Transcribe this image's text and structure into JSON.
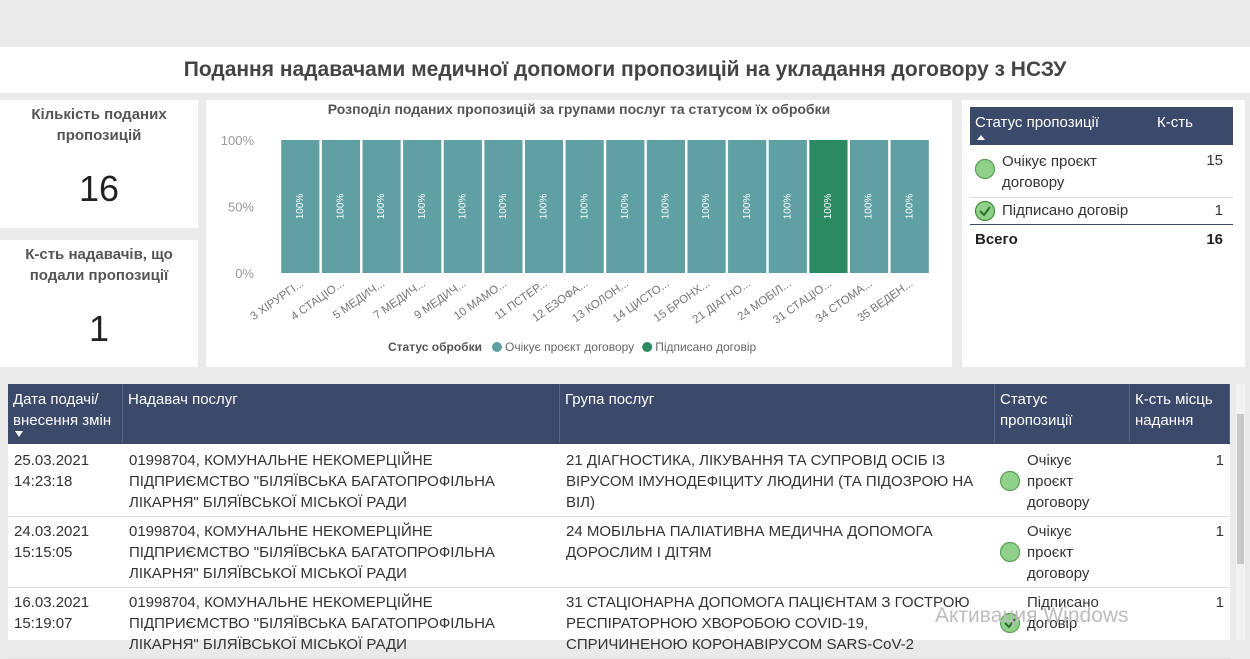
{
  "header": {
    "title": "Подання надавачами медичної допомоги пропозицій на укладання договору з НСЗУ"
  },
  "cards": [
    {
      "label": "Кількість поданих пропозицій",
      "value": 16
    },
    {
      "label": "К-сть надавачів, що подали пропозиції",
      "value": 1
    }
  ],
  "chart_data": {
    "type": "bar",
    "stacked": true,
    "title": "Розподіл поданих пропозицій за групами послуг та статусом їх обробки",
    "categories": [
      "3 ХІРУРГІ...",
      "4 СТАЦІО...",
      "5 МЕДИЧ...",
      "7 МЕДИЧ...",
      "9 МЕДИЧ...",
      "10 МАМО...",
      "11 ПСТЕР...",
      "12 ЕЗОФА...",
      "13 КОЛОН...",
      "14 ЦИСТО...",
      "15 БРОНХ...",
      "21 ДІАГНО...",
      "24 МОБІЛ...",
      "31 СТАЦІО...",
      "34 СТОМА...",
      "35 ВЕДЕН..."
    ],
    "series": [
      {
        "name": "Очікує проєкт договору",
        "color": "#5fa0a3",
        "values": [
          100,
          100,
          100,
          100,
          100,
          100,
          100,
          100,
          100,
          100,
          100,
          100,
          100,
          0,
          100,
          100
        ],
        "value_labels": [
          "100%",
          "100%",
          "100%",
          "100%",
          "100%",
          "100%",
          "100%",
          "100%",
          "100%",
          "100%",
          "100%",
          "100%",
          "100%",
          null,
          "100%",
          "100%"
        ]
      },
      {
        "name": "Підписано договір",
        "color": "#2b8a62",
        "values": [
          0,
          0,
          0,
          0,
          0,
          0,
          0,
          0,
          0,
          0,
          0,
          0,
          0,
          100,
          0,
          0
        ],
        "value_labels": [
          null,
          null,
          null,
          null,
          null,
          null,
          null,
          null,
          null,
          null,
          null,
          null,
          null,
          "100%",
          null,
          null
        ]
      }
    ],
    "ylim": [
      0,
      100
    ],
    "yticks": [
      {
        "value": 0,
        "label": "0%"
      },
      {
        "value": 50,
        "label": "50%"
      },
      {
        "value": 100,
        "label": "100%"
      }
    ],
    "grid": false,
    "legend_title": "Статус обробки",
    "legend": "bottom"
  },
  "status_table": {
    "columns": [
      "Статус пропозиції",
      "К-сть"
    ],
    "rows": [
      [
        "Очікує проєкт договору",
        15
      ],
      [
        "Підписано договір",
        1
      ]
    ],
    "total": [
      "Всего",
      16
    ]
  },
  "table": {
    "columns": [
      "Дата подачі/ внесення змін",
      "Надавач послуг",
      "Група послуг",
      "Статус пропозиції",
      "К-сть місць надання"
    ],
    "rows": [
      [
        "25.03.2021 14:23:18",
        "01998704, КОМУНАЛЬНЕ НЕКОМЕРЦІЙНЕ ПІДПРИЄМСТВО \"БІЛЯЇВСЬКА БАГАТОПРОФІЛЬНА ЛІКАРНЯ\" БІЛЯЇВСЬКОЇ МІСЬКОЇ РАДИ",
        "21 ДІАГНОСТИКА, ЛІКУВАННЯ ТА СУПРОВІД ОСІБ ІЗ ВІРУСОМ ІМУНОДЕФІЦИТУ ЛЮДИНИ (ТА ПІДОЗРОЮ НА ВІЛ)",
        "Очікує проєкт договору",
        1
      ],
      [
        "24.03.2021 15:15:05",
        "01998704, КОМУНАЛЬНЕ НЕКОМЕРЦІЙНЕ ПІДПРИЄМСТВО \"БІЛЯЇВСЬКА БАГАТОПРОФІЛЬНА ЛІКАРНЯ\" БІЛЯЇВСЬКОЇ МІСЬКОЇ РАДИ",
        "24 МОБІЛЬНА ПАЛІАТИВНА МЕДИЧНА ДОПОМОГА ДОРОСЛИМ І ДІТЯМ",
        "Очікує проєкт договору",
        1
      ],
      [
        "16.03.2021 15:19:07",
        "01998704, КОМУНАЛЬНЕ НЕКОМЕРЦІЙНЕ ПІДПРИЄМСТВО \"БІЛЯЇВСЬКА БАГАТОПРОФІЛЬНА ЛІКАРНЯ\" БІЛЯЇВСЬКОЇ МІСЬКОЇ РАДИ",
        "31 СТАЦІОНАРНА ДОПОМОГА ПАЦІЄНТАМ З ГОСТРОЮ РЕСПІРАТОРНОЮ ХВОРОБОЮ COVID-19, СПРИЧИНЕНОЮ КОРОНАВІРУСОМ SARS-CoV-2",
        "Підписано договір",
        1
      ]
    ]
  },
  "watermark": "Активация Windows"
}
